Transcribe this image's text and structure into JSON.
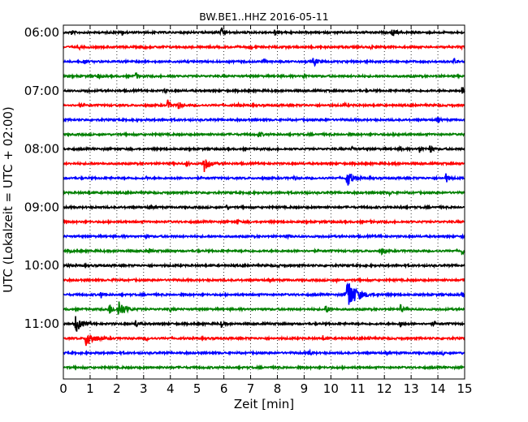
{
  "chart_data": {
    "type": "line",
    "title": "BW.BE1..HHZ 2016-05-11",
    "xlabel": "Zeit  [min]",
    "ylabel": "UTC (Lokalzeit = UTC + 02:00)",
    "xlim": [
      0,
      15
    ],
    "x_ticks": [
      "0",
      "1",
      "2",
      "3",
      "4",
      "5",
      "6",
      "7",
      "8",
      "9",
      "10",
      "11",
      "12",
      "13",
      "14",
      "15"
    ],
    "y_tick_labels": [
      "06:00",
      "07:00",
      "08:00",
      "09:00",
      "10:00",
      "11:00"
    ],
    "grid": "vertical dotted at each minute",
    "trace_colors": [
      "#000000",
      "#ff0000",
      "#0000ff",
      "#008000"
    ],
    "series": [
      {
        "start": "06:00",
        "color": "#000000",
        "events": [
          {
            "x": 0.3,
            "a": 3
          },
          {
            "x": 2.2,
            "a": 3
          },
          {
            "x": 5.9,
            "a": 5
          },
          {
            "x": 7.9,
            "a": 4
          },
          {
            "x": 12.3,
            "a": 6
          }
        ]
      },
      {
        "start": "06:15",
        "color": "#ff0000",
        "events": [
          {
            "x": 0.6,
            "a": 2
          },
          {
            "x": 3.0,
            "a": 2
          },
          {
            "x": 7.0,
            "a": 2
          },
          {
            "x": 11.5,
            "a": 2
          },
          {
            "x": 14.9,
            "a": 2
          }
        ]
      },
      {
        "start": "06:30",
        "color": "#0000ff",
        "events": [
          {
            "x": 0.8,
            "a": 2
          },
          {
            "x": 7.5,
            "a": 2
          },
          {
            "x": 9.35,
            "a": 7
          },
          {
            "x": 14.6,
            "a": 4
          }
        ]
      },
      {
        "start": "06:45",
        "color": "#008000",
        "events": [
          {
            "x": 1.3,
            "a": 3
          },
          {
            "x": 2.7,
            "a": 5
          },
          {
            "x": 4.0,
            "a": 2
          },
          {
            "x": 9.0,
            "a": 3
          }
        ]
      },
      {
        "start": "07:00",
        "color": "#000000",
        "events": [
          {
            "x": 0.9,
            "a": 2
          },
          {
            "x": 3.8,
            "a": 3
          },
          {
            "x": 14.9,
            "a": 5
          }
        ]
      },
      {
        "start": "07:15",
        "color": "#ff0000",
        "events": [
          {
            "x": 0.6,
            "a": 3
          },
          {
            "x": 3.9,
            "a": 6
          },
          {
            "x": 4.3,
            "a": 5
          },
          {
            "x": 6.5,
            "a": 3
          },
          {
            "x": 10.5,
            "a": 2
          }
        ]
      },
      {
        "start": "07:30",
        "color": "#0000ff",
        "events": [
          {
            "x": 2.6,
            "a": 2
          },
          {
            "x": 9.8,
            "a": 2
          },
          {
            "x": 14.0,
            "a": 3
          }
        ]
      },
      {
        "start": "07:45",
        "color": "#008000",
        "events": [
          {
            "x": 7.3,
            "a": 5
          },
          {
            "x": 12.5,
            "a": 2
          }
        ]
      },
      {
        "start": "08:00",
        "color": "#000000",
        "events": [
          {
            "x": 10.8,
            "a": 3
          },
          {
            "x": 12.6,
            "a": 3
          },
          {
            "x": 13.3,
            "a": 5
          },
          {
            "x": 13.7,
            "a": 5
          }
        ]
      },
      {
        "start": "08:15",
        "color": "#ff0000",
        "events": [
          {
            "x": 4.6,
            "a": 4
          },
          {
            "x": 5.25,
            "a": 11
          },
          {
            "x": 12.4,
            "a": 2
          }
        ]
      },
      {
        "start": "08:30",
        "color": "#0000ff",
        "events": [
          {
            "x": 3.1,
            "a": 2
          },
          {
            "x": 8.6,
            "a": 3
          },
          {
            "x": 10.6,
            "a": 12
          },
          {
            "x": 14.3,
            "a": 6
          }
        ]
      },
      {
        "start": "08:45",
        "color": "#008000",
        "events": [
          {
            "x": 9.0,
            "a": 2
          },
          {
            "x": 12.2,
            "a": 3
          }
        ]
      },
      {
        "start": "09:00",
        "color": "#000000",
        "events": [
          {
            "x": 3.2,
            "a": 2
          },
          {
            "x": 6.1,
            "a": 3
          },
          {
            "x": 12.6,
            "a": 2
          }
        ]
      },
      {
        "start": "09:15",
        "color": "#ff0000",
        "events": [
          {
            "x": 6.5,
            "a": 3
          },
          {
            "x": 11.5,
            "a": 2
          }
        ]
      },
      {
        "start": "09:30",
        "color": "#0000ff",
        "events": [
          {
            "x": 3.1,
            "a": 2
          },
          {
            "x": 8.4,
            "a": 3
          },
          {
            "x": 11.8,
            "a": 2
          },
          {
            "x": 14.9,
            "a": 2
          }
        ]
      },
      {
        "start": "09:45",
        "color": "#008000",
        "events": [
          {
            "x": 0.3,
            "a": 2
          },
          {
            "x": 3.2,
            "a": 3
          },
          {
            "x": 11.9,
            "a": 4
          },
          {
            "x": 14.9,
            "a": 5
          }
        ]
      },
      {
        "start": "10:00",
        "color": "#000000",
        "events": [
          {
            "x": 0.2,
            "a": 2
          },
          {
            "x": 8.0,
            "a": 2
          }
        ]
      },
      {
        "start": "10:15",
        "color": "#ff0000",
        "events": [
          {
            "x": 1.9,
            "a": 2
          },
          {
            "x": 10.2,
            "a": 2
          }
        ]
      },
      {
        "start": "10:30",
        "color": "#0000ff",
        "events": [
          {
            "x": 1.4,
            "a": 4
          },
          {
            "x": 10.6,
            "a": 22
          },
          {
            "x": 14.9,
            "a": 3
          }
        ]
      },
      {
        "start": "10:45",
        "color": "#008000",
        "events": [
          {
            "x": 1.7,
            "a": 8
          },
          {
            "x": 2.05,
            "a": 13
          },
          {
            "x": 4.0,
            "a": 3
          },
          {
            "x": 9.8,
            "a": 6
          },
          {
            "x": 12.6,
            "a": 5
          }
        ]
      },
      {
        "start": "11:00",
        "color": "#000000",
        "events": [
          {
            "x": 0.45,
            "a": 12
          },
          {
            "x": 2.7,
            "a": 5
          },
          {
            "x": 5.9,
            "a": 4
          },
          {
            "x": 12.6,
            "a": 4
          },
          {
            "x": 13.8,
            "a": 3
          }
        ]
      },
      {
        "start": "11:15",
        "color": "#ff0000",
        "events": [
          {
            "x": 0.85,
            "a": 14
          },
          {
            "x": 3.1,
            "a": 3
          },
          {
            "x": 9.7,
            "a": 3
          },
          {
            "x": 11.4,
            "a": 2
          }
        ]
      },
      {
        "start": "11:30",
        "color": "#0000ff",
        "events": [
          {
            "x": 9.2,
            "a": 4
          },
          {
            "x": 14.2,
            "a": 2
          }
        ]
      },
      {
        "start": "11:45",
        "color": "#008000",
        "events": []
      }
    ]
  }
}
